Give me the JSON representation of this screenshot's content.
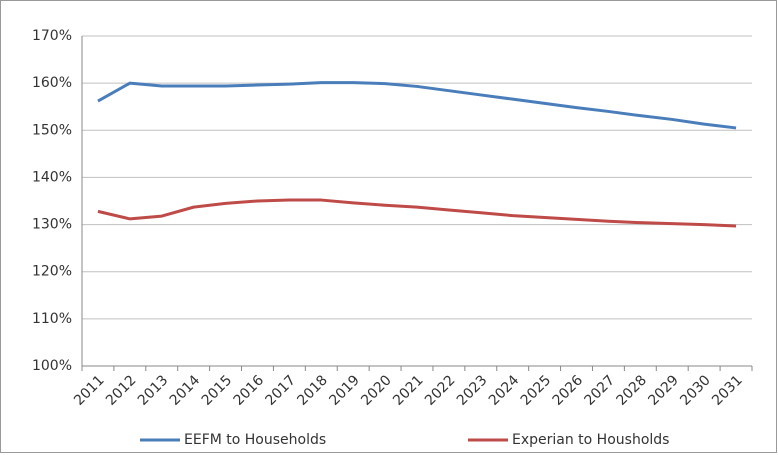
{
  "chart_data": {
    "type": "line",
    "categories": [
      "2011",
      "2012",
      "2013",
      "2014",
      "2015",
      "2016",
      "2017",
      "2018",
      "2019",
      "2020",
      "2021",
      "2022",
      "2023",
      "2024",
      "2025",
      "2026",
      "2027",
      "2028",
      "2029",
      "2030",
      "2031"
    ],
    "series": [
      {
        "name": "EEFM to Households",
        "color": "#4a7ebb",
        "values": [
          156.2,
          160.0,
          159.4,
          159.4,
          159.4,
          159.6,
          159.8,
          160.1,
          160.1,
          159.9,
          159.3,
          158.4,
          157.5,
          156.6,
          155.7,
          154.8,
          154.0,
          153.1,
          152.3,
          151.3,
          150.5
        ]
      },
      {
        "name": "Experian to Housholds",
        "color": "#be4b48",
        "values": [
          132.8,
          131.2,
          131.8,
          133.7,
          134.5,
          135.0,
          135.2,
          135.2,
          134.6,
          134.1,
          133.7,
          133.1,
          132.5,
          131.9,
          131.5,
          131.1,
          130.7,
          130.4,
          130.2,
          130.0,
          129.7
        ]
      }
    ],
    "ylim": [
      100,
      170
    ],
    "yticks": [
      {
        "value": 100,
        "label": "100%"
      },
      {
        "value": 110,
        "label": "110%"
      },
      {
        "value": 120,
        "label": "120%"
      },
      {
        "value": 130,
        "label": "130%"
      },
      {
        "value": 140,
        "label": "140%"
      },
      {
        "value": 150,
        "label": "150%"
      },
      {
        "value": 160,
        "label": "160%"
      },
      {
        "value": 170,
        "label": "170%"
      }
    ],
    "grid": true
  }
}
